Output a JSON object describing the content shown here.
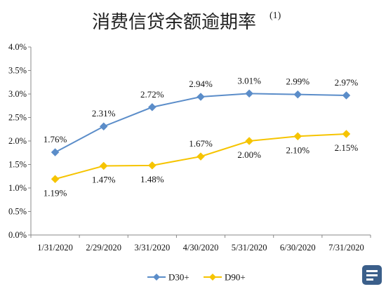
{
  "chart_data": {
    "type": "line",
    "title": "消费信贷余额逾期率",
    "title_superscript": "(1)",
    "categories": [
      "1/31/2020",
      "2/29/2020",
      "3/31/2020",
      "4/30/2020",
      "5/31/2020",
      "6/30/2020",
      "7/31/2020"
    ],
    "y_ticks": [
      "0.0%",
      "0.5%",
      "1.0%",
      "1.5%",
      "2.0%",
      "2.5%",
      "3.0%",
      "3.5%",
      "4.0%"
    ],
    "ylim": [
      0,
      4.0
    ],
    "y_unit": "%",
    "grid": false,
    "legend_position": "bottom",
    "series": [
      {
        "name": "D30+",
        "color": "#5B8DC9",
        "marker": "diamond",
        "values": [
          1.76,
          2.31,
          2.72,
          2.94,
          3.01,
          2.99,
          2.97
        ],
        "labels": [
          "1.76%",
          "2.31%",
          "2.72%",
          "2.94%",
          "3.01%",
          "2.99%",
          "2.97%"
        ]
      },
      {
        "name": "D90+",
        "color": "#F6C400",
        "marker": "diamond",
        "values": [
          1.19,
          1.47,
          1.48,
          1.67,
          2.0,
          2.1,
          2.15
        ],
        "labels": [
          "1.19%",
          "1.47%",
          "1.48%",
          "1.67%",
          "2.00%",
          "2.10%",
          "2.15%"
        ]
      }
    ]
  },
  "watermark_icon": "app-logo-icon"
}
